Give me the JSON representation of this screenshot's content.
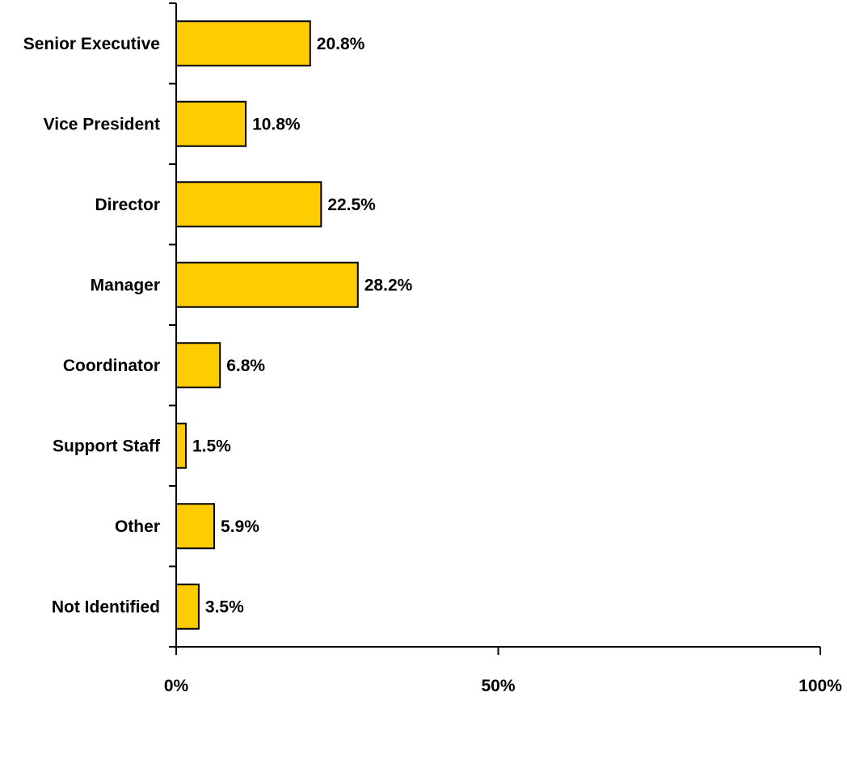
{
  "chart_data": {
    "type": "bar",
    "orientation": "horizontal",
    "categories": [
      "Senior Executive",
      "Vice President",
      "Director",
      "Manager",
      "Coordinator",
      "Support Staff",
      "Other",
      "Not Identified"
    ],
    "values": [
      20.8,
      10.8,
      22.5,
      28.2,
      6.8,
      1.5,
      5.9,
      3.5
    ],
    "value_labels": [
      "20.8%",
      "10.8%",
      "22.5%",
      "28.2%",
      "6.8%",
      "1.5%",
      "5.9%",
      "3.5%"
    ],
    "xlim": [
      0,
      100
    ],
    "x_ticks": [
      0,
      50,
      100
    ],
    "x_tick_labels": [
      "0%",
      "50%",
      "100%"
    ],
    "bar_color": "#FFCC00",
    "bar_outline": "#000000",
    "grid": false,
    "title": "",
    "xlabel": "",
    "ylabel": ""
  }
}
